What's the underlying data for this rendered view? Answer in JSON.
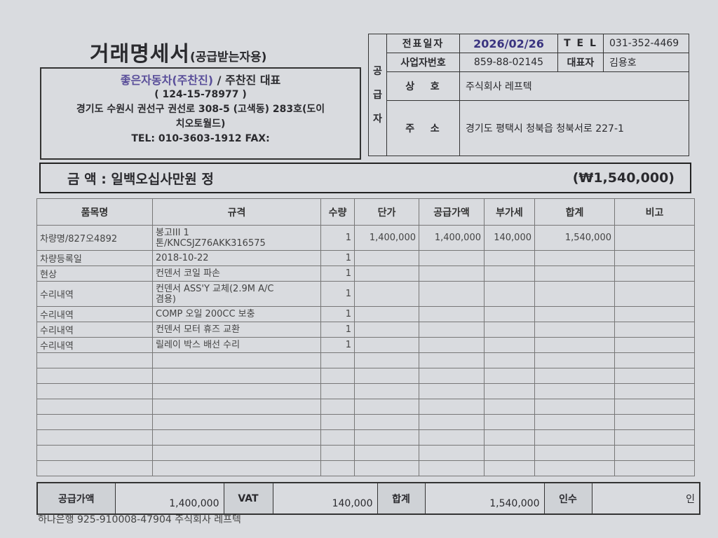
{
  "title": "거래명세서",
  "subtitle": "(공급받는자용)",
  "buyer": {
    "name_colored": "좋은자동차(주찬진)",
    "name_rest": " / 주찬진 대표",
    "reg_no": "( 124-15-78977 )",
    "address": "경기도 수원시 권선구 권선로 308-5 (고색동) 283호(도이",
    "address2": "치오토월드)",
    "contact": "TEL: 010-3603-1912   FAX:"
  },
  "supplier": {
    "side_label": [
      "공",
      "급",
      "자"
    ],
    "date_label": "전표일자",
    "date": "2026/02/26",
    "tel_label": "T E L",
    "tel": "031-352-4469",
    "biz_label": "사업자번호",
    "biz_no": "859-88-02145",
    "rep_label": "대표자",
    "rep": "김용호",
    "name_label": "상   호",
    "name": "주식회사 레프텍",
    "addr_label": "주   소",
    "addr": "경기도 평택시 청북읍 청북서로 227-1"
  },
  "amount": {
    "label": "금  액 : 일백오십사만원 정",
    "value": "(₩1,540,000)"
  },
  "table": {
    "headers": [
      "품목명",
      "규격",
      "수량",
      "단가",
      "공급가액",
      "부가세",
      "합계",
      "비고"
    ],
    "rows": [
      [
        "차량명/827오4892",
        "봉고III 1\n톤/KNCSJZ76AKK316575",
        "1",
        "1,400,000",
        "1,400,000",
        "140,000",
        "1,540,000",
        ""
      ],
      [
        "차량등록일",
        "2018-10-22",
        "1",
        "",
        "",
        "",
        "",
        ""
      ],
      [
        "현상",
        "컨덴서 코일 파손",
        "1",
        "",
        "",
        "",
        "",
        ""
      ],
      [
        "수리내역",
        "컨덴서 ASS'Y 교체(2.9M A/C\n겸용)",
        "1",
        "",
        "",
        "",
        "",
        ""
      ],
      [
        "수리내역",
        "COMP 오일 200CC 보충",
        "1",
        "",
        "",
        "",
        "",
        ""
      ],
      [
        "수리내역",
        "컨덴서 모터 휴즈 교환",
        "1",
        "",
        "",
        "",
        "",
        ""
      ],
      [
        "수리내역",
        "릴레이 박스 배선 수리",
        "1",
        "",
        "",
        "",
        "",
        ""
      ]
    ]
  },
  "totals": {
    "supply_label": "공급가액",
    "supply": "1,400,000",
    "vat_label": "VAT",
    "vat": "140,000",
    "sum_label": "합계",
    "sum": "1,540,000",
    "recv_label": "인수",
    "recv_mark": "인"
  },
  "footer": "하나은행 925-910008-47904 주식회사 레프텍"
}
